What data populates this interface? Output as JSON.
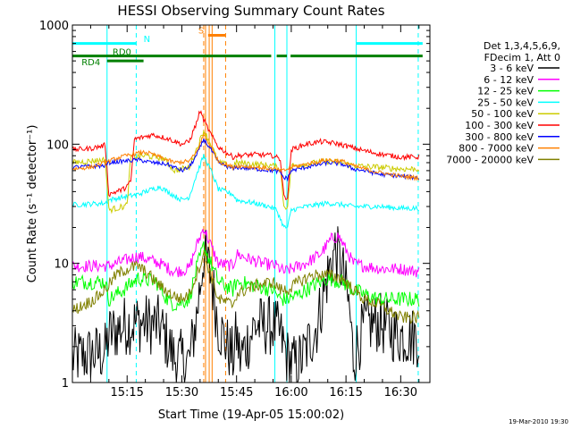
{
  "chart_data": {
    "type": "line",
    "title": "HESSI Observing Summary Count Rates",
    "xlabel": "Start Time (19-Apr-05 15:00:02)",
    "ylabel": "Count Rate (s⁻¹ detector⁻¹)",
    "xscale": "time",
    "yscale": "log",
    "xlim": [
      0,
      98
    ],
    "ylim": [
      1,
      1000
    ],
    "x_ticks": [
      {
        "t": 15,
        "label": "15:15"
      },
      {
        "t": 30,
        "label": "15:30"
      },
      {
        "t": 45,
        "label": "15:45"
      },
      {
        "t": 60,
        "label": "16:00"
      },
      {
        "t": 75,
        "label": "16:15"
      },
      {
        "t": 90,
        "label": "16:30"
      }
    ],
    "y_ticks": [
      {
        "v": 1,
        "label": "1"
      },
      {
        "v": 10,
        "label": "10"
      },
      {
        "v": 100,
        "label": "100"
      },
      {
        "v": 1000,
        "label": "1000"
      }
    ],
    "legend": {
      "placement": "right",
      "header": [
        "Det 1,3,4,5,6,9,",
        "FDecim 1, Att 0"
      ]
    },
    "series": [
      {
        "name": "3 - 6 keV",
        "color": "#000000",
        "noise": 0.6,
        "points": [
          [
            0,
            1.6
          ],
          [
            9,
            1.8
          ],
          [
            10,
            2.5
          ],
          [
            14,
            3.0
          ],
          [
            18,
            3.2
          ],
          [
            24,
            3.0
          ],
          [
            28,
            1.6
          ],
          [
            32,
            1.5
          ],
          [
            34,
            3.5
          ],
          [
            36,
            12
          ],
          [
            38,
            8
          ],
          [
            40,
            3
          ],
          [
            44,
            1.6
          ],
          [
            45,
            2.5
          ],
          [
            46,
            1.6
          ],
          [
            50,
            3.0
          ],
          [
            55,
            3.0
          ],
          [
            57,
            2.5
          ],
          [
            59,
            1.6
          ],
          [
            61,
            1.4
          ],
          [
            63,
            1.6
          ],
          [
            67,
            3
          ],
          [
            70,
            8
          ],
          [
            72,
            13
          ],
          [
            74,
            9
          ],
          [
            76,
            4
          ],
          [
            77,
            1.6
          ],
          [
            80,
            3.0
          ],
          [
            84,
            3.2
          ],
          [
            89,
            2.5
          ],
          [
            95,
            2.4
          ]
        ]
      },
      {
        "name": "6 - 12 keV",
        "color": "#ff00ff",
        "noise": 0.12,
        "points": [
          [
            0,
            9.5
          ],
          [
            10,
            9.5
          ],
          [
            14,
            10.5
          ],
          [
            18,
            11.5
          ],
          [
            24,
            10
          ],
          [
            28,
            8.5
          ],
          [
            32,
            9
          ],
          [
            34,
            14
          ],
          [
            36,
            20
          ],
          [
            38,
            14
          ],
          [
            40,
            10
          ],
          [
            44,
            9.5
          ],
          [
            45,
            12
          ],
          [
            48,
            11
          ],
          [
            52,
            10
          ],
          [
            56,
            9.5
          ],
          [
            58,
            8.5
          ],
          [
            60,
            9
          ],
          [
            64,
            10
          ],
          [
            68,
            12
          ],
          [
            71,
            16
          ],
          [
            73,
            17
          ],
          [
            75,
            13
          ],
          [
            77,
            10
          ],
          [
            80,
            9.5
          ],
          [
            85,
            9
          ],
          [
            90,
            9
          ],
          [
            95,
            8.5
          ]
        ]
      },
      {
        "name": "12 - 25 keV",
        "color": "#00ff00",
        "noise": 0.15,
        "points": [
          [
            0,
            7
          ],
          [
            9,
            7
          ],
          [
            10,
            5
          ],
          [
            14,
            6
          ],
          [
            18,
            7.5
          ],
          [
            23,
            7
          ],
          [
            26,
            5
          ],
          [
            28,
            4.5
          ],
          [
            32,
            5
          ],
          [
            34,
            9
          ],
          [
            36,
            14
          ],
          [
            38,
            10
          ],
          [
            40,
            7
          ],
          [
            44,
            6
          ],
          [
            45,
            7
          ],
          [
            50,
            6.5
          ],
          [
            55,
            6
          ],
          [
            57,
            5
          ],
          [
            59,
            5
          ],
          [
            62,
            5.5
          ],
          [
            66,
            6.5
          ],
          [
            70,
            7.5
          ],
          [
            74,
            7
          ],
          [
            77,
            6
          ],
          [
            80,
            5.5
          ],
          [
            84,
            5
          ],
          [
            90,
            5
          ],
          [
            95,
            5
          ]
        ]
      },
      {
        "name": "25 - 50 keV",
        "color": "#00ffff",
        "noise": 0.05,
        "points": [
          [
            0,
            31
          ],
          [
            9,
            32
          ],
          [
            10,
            34
          ],
          [
            14,
            36
          ],
          [
            18,
            38
          ],
          [
            22,
            42
          ],
          [
            24,
            44
          ],
          [
            26,
            40
          ],
          [
            30,
            34
          ],
          [
            32,
            36
          ],
          [
            34,
            55
          ],
          [
            36,
            80
          ],
          [
            38,
            60
          ],
          [
            40,
            42
          ],
          [
            44,
            38
          ],
          [
            45,
            34
          ],
          [
            50,
            32
          ],
          [
            54,
            30
          ],
          [
            56,
            28
          ],
          [
            58,
            20
          ],
          [
            59,
            20
          ],
          [
            60,
            28
          ],
          [
            64,
            30
          ],
          [
            70,
            32
          ],
          [
            74,
            31
          ],
          [
            77,
            30
          ],
          [
            80,
            30
          ],
          [
            84,
            30
          ],
          [
            90,
            29
          ],
          [
            95,
            29
          ]
        ]
      },
      {
        "name": "50 - 100 keV",
        "color": "#cccc00",
        "noise": 0.06,
        "points": [
          [
            0,
            70
          ],
          [
            9,
            74
          ],
          [
            10,
            28
          ],
          [
            14,
            30
          ],
          [
            15,
            31
          ],
          [
            16,
            78
          ],
          [
            20,
            80
          ],
          [
            25,
            76
          ],
          [
            28,
            60
          ],
          [
            32,
            64
          ],
          [
            34,
            90
          ],
          [
            36,
            130
          ],
          [
            38,
            100
          ],
          [
            40,
            70
          ],
          [
            44,
            65
          ],
          [
            45,
            70
          ],
          [
            50,
            68
          ],
          [
            55,
            66
          ],
          [
            57,
            62
          ],
          [
            58,
            30
          ],
          [
            59,
            30
          ],
          [
            60,
            66
          ],
          [
            64,
            68
          ],
          [
            70,
            72
          ],
          [
            74,
            70
          ],
          [
            77,
            66
          ],
          [
            80,
            65
          ],
          [
            84,
            64
          ],
          [
            90,
            62
          ],
          [
            95,
            62
          ]
        ]
      },
      {
        "name": "100 - 300 keV",
        "color": "#ff0000",
        "noise": 0.05,
        "points": [
          [
            0,
            90
          ],
          [
            5,
            92
          ],
          [
            9,
            98
          ],
          [
            10,
            38
          ],
          [
            14,
            42
          ],
          [
            16,
            48
          ],
          [
            17,
            110
          ],
          [
            22,
            120
          ],
          [
            26,
            112
          ],
          [
            30,
            100
          ],
          [
            32,
            105
          ],
          [
            34,
            150
          ],
          [
            35,
            190
          ],
          [
            36,
            160
          ],
          [
            38,
            120
          ],
          [
            40,
            95
          ],
          [
            44,
            78
          ],
          [
            45,
            80
          ],
          [
            50,
            82
          ],
          [
            55,
            80
          ],
          [
            57,
            75
          ],
          [
            58,
            36
          ],
          [
            59,
            36
          ],
          [
            60,
            90
          ],
          [
            64,
            100
          ],
          [
            68,
            105
          ],
          [
            72,
            102
          ],
          [
            76,
            95
          ],
          [
            80,
            88
          ],
          [
            85,
            82
          ],
          [
            90,
            78
          ],
          [
            95,
            78
          ]
        ]
      },
      {
        "name": "300 - 800 keV",
        "color": "#0000ff",
        "noise": 0.04,
        "points": [
          [
            0,
            64
          ],
          [
            9,
            66
          ],
          [
            10,
            70
          ],
          [
            14,
            72
          ],
          [
            18,
            74
          ],
          [
            22,
            70
          ],
          [
            26,
            68
          ],
          [
            30,
            60
          ],
          [
            32,
            64
          ],
          [
            34,
            80
          ],
          [
            36,
            110
          ],
          [
            38,
            90
          ],
          [
            40,
            70
          ],
          [
            44,
            62
          ],
          [
            45,
            64
          ],
          [
            50,
            62
          ],
          [
            55,
            60
          ],
          [
            57,
            58
          ],
          [
            58,
            52
          ],
          [
            59,
            52
          ],
          [
            60,
            60
          ],
          [
            64,
            64
          ],
          [
            70,
            70
          ],
          [
            74,
            68
          ],
          [
            77,
            62
          ],
          [
            80,
            60
          ],
          [
            84,
            56
          ],
          [
            90,
            54
          ],
          [
            95,
            52
          ]
        ]
      },
      {
        "name": "800 - 7000 keV",
        "color": "#ff8000",
        "noise": 0.04,
        "points": [
          [
            0,
            62
          ],
          [
            5,
            64
          ],
          [
            9,
            70
          ],
          [
            12,
            76
          ],
          [
            16,
            82
          ],
          [
            20,
            86
          ],
          [
            24,
            78
          ],
          [
            28,
            70
          ],
          [
            32,
            72
          ],
          [
            34,
            85
          ],
          [
            36,
            120
          ],
          [
            38,
            95
          ],
          [
            40,
            72
          ],
          [
            44,
            64
          ],
          [
            45,
            66
          ],
          [
            50,
            64
          ],
          [
            55,
            62
          ],
          [
            57,
            60
          ],
          [
            58,
            60
          ],
          [
            60,
            64
          ],
          [
            64,
            68
          ],
          [
            70,
            74
          ],
          [
            74,
            72
          ],
          [
            77,
            66
          ],
          [
            80,
            62
          ],
          [
            84,
            58
          ],
          [
            90,
            54
          ],
          [
            95,
            52
          ]
        ]
      },
      {
        "name": "7000 - 20000 keV",
        "color": "#808000",
        "noise": 0.12,
        "points": [
          [
            0,
            4
          ],
          [
            6,
            5
          ],
          [
            9,
            6
          ],
          [
            12,
            8
          ],
          [
            15,
            9
          ],
          [
            18,
            9.5
          ],
          [
            21,
            8
          ],
          [
            24,
            6.5
          ],
          [
            27,
            5.5
          ],
          [
            30,
            5
          ],
          [
            32,
            5.5
          ],
          [
            34,
            8
          ],
          [
            36,
            12
          ],
          [
            38,
            8
          ],
          [
            40,
            5
          ],
          [
            44,
            4.5
          ],
          [
            45,
            5.5
          ],
          [
            50,
            6.5
          ],
          [
            55,
            7
          ],
          [
            57,
            6
          ],
          [
            59,
            6
          ],
          [
            62,
            7
          ],
          [
            66,
            8
          ],
          [
            70,
            8
          ],
          [
            74,
            7.5
          ],
          [
            77,
            6
          ],
          [
            80,
            5
          ],
          [
            84,
            4.5
          ],
          [
            90,
            3.5
          ],
          [
            95,
            3.5
          ]
        ]
      }
    ],
    "event_markers": [
      {
        "t": 9.5,
        "style": "solid",
        "color": "#00ffff"
      },
      {
        "t": 17.5,
        "style": "dashed",
        "color": "#00ffff"
      },
      {
        "t": 36.5,
        "style": "solid",
        "color": "#ff8000"
      },
      {
        "t": 37.5,
        "style": "solid",
        "color": "#ff8000"
      },
      {
        "t": 38.3,
        "style": "solid",
        "color": "#ff8000"
      },
      {
        "t": 36.0,
        "style": "dashed",
        "color": "#ff8000"
      },
      {
        "t": 42.0,
        "style": "dashed",
        "color": "#ff8000"
      },
      {
        "t": 55.5,
        "style": "solid",
        "color": "#00ffff"
      },
      {
        "t": 58.8,
        "style": "solid",
        "color": "#00ffff"
      },
      {
        "t": 77.8,
        "style": "solid",
        "color": "#00ffff"
      },
      {
        "t": 94.8,
        "style": "dashed",
        "color": "#00ffff"
      }
    ],
    "flag_bars": [
      {
        "label": "",
        "color": "#00ffff",
        "v": 700,
        "segments": [
          [
            0,
            17.5
          ],
          [
            77.8,
            96
          ]
        ]
      },
      {
        "label": "S",
        "color": "#ff8000",
        "v": 820,
        "segments": [
          [
            37.2,
            42.0
          ]
        ]
      },
      {
        "label": "RD0",
        "color": "#008000",
        "v": 500,
        "segments": [
          [
            9.5,
            19.5
          ]
        ]
      },
      {
        "label": "RD4",
        "color": "#008000",
        "v": 550,
        "segments": [
          [
            0,
            54.5
          ],
          [
            56.0,
            58.8
          ],
          [
            59.8,
            96
          ]
        ]
      }
    ],
    "marker_labels": [
      {
        "text": "N",
        "color": "#00ffff",
        "t": 19.5,
        "v": 720
      },
      {
        "text": "S",
        "color": "#ff8000",
        "t": 34.5,
        "v": 850
      },
      {
        "text": "RD0",
        "color": "#008000",
        "t": 11.0,
        "v": 560
      },
      {
        "text": "RD4",
        "color": "#008000",
        "t": 2.5,
        "v": 460
      }
    ]
  },
  "footer": {
    "stamp": "19-Mar-2010 19:30"
  }
}
